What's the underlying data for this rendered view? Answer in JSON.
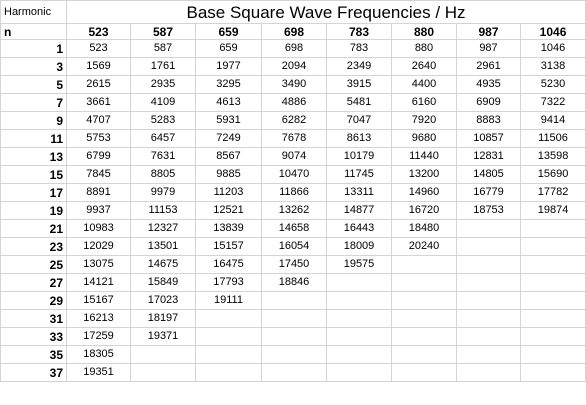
{
  "sheet": {
    "corner_label": "Harmonic",
    "title": "Base Square Wave Frequencies / Hz",
    "n_label": "n",
    "base_frequencies": [
      "523",
      "587",
      "659",
      "698",
      "783",
      "880",
      "987",
      "1046"
    ],
    "rows": [
      {
        "n": "1",
        "values": [
          "523",
          "587",
          "659",
          "698",
          "783",
          "880",
          "987",
          "1046"
        ]
      },
      {
        "n": "3",
        "values": [
          "1569",
          "1761",
          "1977",
          "2094",
          "2349",
          "2640",
          "2961",
          "3138"
        ]
      },
      {
        "n": "5",
        "values": [
          "2615",
          "2935",
          "3295",
          "3490",
          "3915",
          "4400",
          "4935",
          "5230"
        ]
      },
      {
        "n": "7",
        "values": [
          "3661",
          "4109",
          "4613",
          "4886",
          "5481",
          "6160",
          "6909",
          "7322"
        ]
      },
      {
        "n": "9",
        "values": [
          "4707",
          "5283",
          "5931",
          "6282",
          "7047",
          "7920",
          "8883",
          "9414"
        ]
      },
      {
        "n": "11",
        "values": [
          "5753",
          "6457",
          "7249",
          "7678",
          "8613",
          "9680",
          "10857",
          "11506"
        ]
      },
      {
        "n": "13",
        "values": [
          "6799",
          "7631",
          "8567",
          "9074",
          "10179",
          "11440",
          "12831",
          "13598"
        ]
      },
      {
        "n": "15",
        "values": [
          "7845",
          "8805",
          "9885",
          "10470",
          "11745",
          "13200",
          "14805",
          "15690"
        ]
      },
      {
        "n": "17",
        "values": [
          "8891",
          "9979",
          "11203",
          "11866",
          "13311",
          "14960",
          "16779",
          "17782"
        ]
      },
      {
        "n": "19",
        "values": [
          "9937",
          "11153",
          "12521",
          "13262",
          "14877",
          "16720",
          "18753",
          "19874"
        ]
      },
      {
        "n": "21",
        "values": [
          "10983",
          "12327",
          "13839",
          "14658",
          "16443",
          "18480",
          "",
          ""
        ]
      },
      {
        "n": "23",
        "values": [
          "12029",
          "13501",
          "15157",
          "16054",
          "18009",
          "20240",
          "",
          ""
        ]
      },
      {
        "n": "25",
        "values": [
          "13075",
          "14675",
          "16475",
          "17450",
          "19575",
          "",
          "",
          ""
        ]
      },
      {
        "n": "27",
        "values": [
          "14121",
          "15849",
          "17793",
          "18846",
          "",
          "",
          "",
          ""
        ]
      },
      {
        "n": "29",
        "values": [
          "15167",
          "17023",
          "19111",
          "",
          "",
          "",
          "",
          ""
        ]
      },
      {
        "n": "31",
        "values": [
          "16213",
          "18197",
          "",
          "",
          "",
          "",
          "",
          ""
        ]
      },
      {
        "n": "33",
        "values": [
          "17259",
          "19371",
          "",
          "",
          "",
          "",
          "",
          ""
        ]
      },
      {
        "n": "35",
        "values": [
          "18305",
          "",
          "",
          "",
          "",
          "",
          "",
          ""
        ]
      },
      {
        "n": "37",
        "values": [
          "19351",
          "",
          "",
          "",
          "",
          "",
          "",
          ""
        ]
      }
    ]
  }
}
